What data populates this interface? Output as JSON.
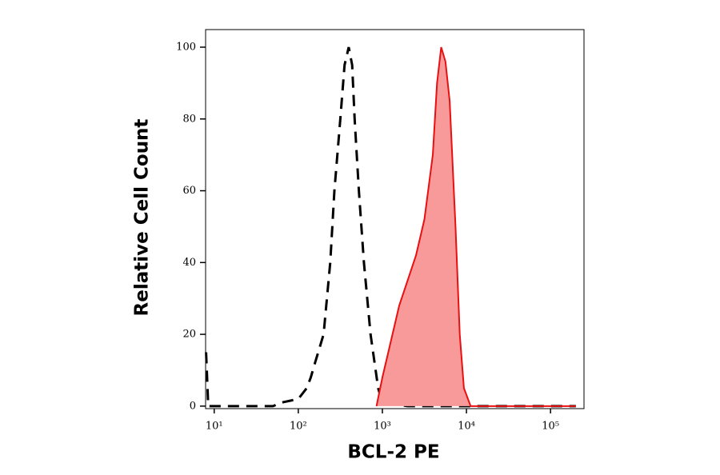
{
  "chart_data": {
    "type": "area",
    "xlabel": "BCL-2 PE",
    "ylabel": "Relative Cell Count",
    "xscale": "log",
    "xlim": [
      7.9,
      250000
    ],
    "ylim": [
      -0.7,
      104.9
    ],
    "xticks": [
      {
        "value": 10,
        "label": "10¹"
      },
      {
        "value": 100,
        "label": "10²"
      },
      {
        "value": 1000,
        "label": "10³"
      },
      {
        "value": 10000,
        "label": "10⁴"
      },
      {
        "value": 100000,
        "label": "10⁵"
      }
    ],
    "yticks": [
      0,
      20,
      40,
      60,
      80,
      100
    ],
    "grid": false,
    "series": [
      {
        "color": "#000000",
        "style": "dashed",
        "filled": false,
        "x": [
          8,
          8.5,
          30,
          50,
          63,
          100,
          126,
          141,
          158,
          200,
          240,
          269,
          316,
          355,
          398,
          437,
          468,
          525,
          603,
          724,
          891,
          1000,
          2000,
          10000,
          200000
        ],
        "values": [
          15,
          0,
          0,
          0,
          1,
          2,
          5,
          8,
          12,
          20,
          40,
          60,
          80,
          95,
          100,
          95,
          80,
          60,
          40,
          20,
          5,
          1,
          0,
          0,
          0
        ]
      },
      {
        "color": "#e81010",
        "fill": "#f89a9a",
        "style": "solid",
        "filled": true,
        "x": [
          851,
          1000,
          1259,
          1585,
          1995,
          2512,
          3162,
          3981,
          4467,
          5012,
          5623,
          6310,
          7413,
          8318,
          9333,
          11220,
          200000
        ],
        "values": [
          0,
          8,
          18,
          28,
          35,
          42,
          52,
          70,
          90,
          100,
          96,
          85,
          50,
          20,
          5,
          0,
          0
        ]
      }
    ]
  }
}
